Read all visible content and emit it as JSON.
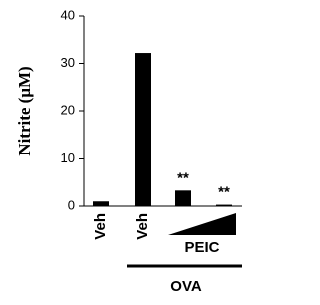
{
  "chart_data": {
    "type": "bar",
    "y_label": "Nitrite (μM)",
    "categories": [
      "Veh",
      "Veh",
      null,
      null
    ],
    "values": [
      1,
      32.2,
      3.3,
      0.3
    ],
    "significance": [
      null,
      null,
      "**",
      "**"
    ],
    "color": "#000000",
    "group_labels": [
      "PEIC",
      "OVA"
    ],
    "ylim": [
      0,
      40
    ],
    "yticks": [
      0,
      10,
      20,
      30,
      40
    ],
    "grid": false
  }
}
